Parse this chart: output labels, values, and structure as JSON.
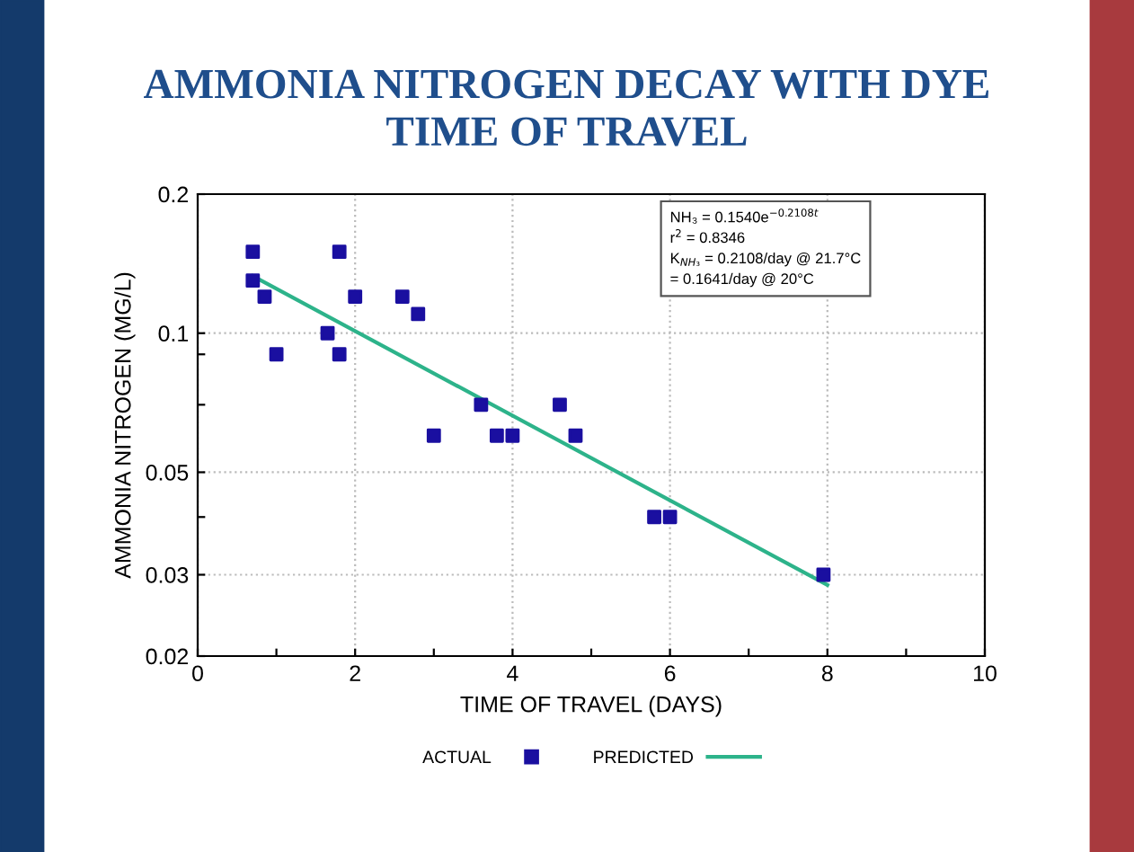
{
  "chart_data": {
    "type": "scatter",
    "title": "AMMONIA NITROGEN DECAY WITH DYE\nTIME OF TRAVEL",
    "xlabel": "TIME OF TRAVEL (DAYS)",
    "ylabel": "AMMONIA NITROGEN (MG/L)",
    "x": [
      0.7,
      0.7,
      0.85,
      1.0,
      1.65,
      1.8,
      1.8,
      2.0,
      2.6,
      2.8,
      3.0,
      3.6,
      3.8,
      4.0,
      4.6,
      4.8,
      5.8,
      6.0,
      7.95
    ],
    "series": [
      {
        "name": "ACTUAL",
        "color": "#1a0fa0",
        "marker": "square",
        "values": [
          0.15,
          0.13,
          0.12,
          0.09,
          0.1,
          0.15,
          0.09,
          0.12,
          0.12,
          0.11,
          0.06,
          0.07,
          0.06,
          0.06,
          0.07,
          0.06,
          0.04,
          0.04,
          0.03
        ]
      },
      {
        "name": "PREDICTED",
        "type": "line",
        "color": "#2db38a",
        "marker": "none",
        "line_style": "solid",
        "x": [
          0.7,
          8.0
        ],
        "values": [
          0.133,
          0.0285
        ]
      }
    ],
    "log": "y",
    "xlim": [
      0,
      10
    ],
    "xticks": [
      0,
      {
        "value": 1,
        "label": null
      },
      2,
      {
        "value": 3,
        "label": null
      },
      4,
      {
        "value": 5,
        "label": null
      },
      6,
      {
        "value": 7,
        "label": null
      },
      8,
      {
        "value": 9,
        "label": null
      },
      10
    ],
    "ylim": [
      0.02,
      0.2
    ],
    "yticks": [
      0.02,
      0.03,
      {
        "value": 0.04,
        "label": null
      },
      0.05,
      {
        "value": 0.07,
        "label": null
      },
      {
        "value": 0.09,
        "label": null
      },
      0.1,
      0.2
    ],
    "grid": true,
    "legend": "bottom",
    "annotations": [
      "NH₃ = 0.1540e$^{−0.2108t}$",
      "r$^{2}$ = 0.8346",
      "K$_{NH₃}$ = 0.2108/day @ 21.7°C",
      "= 0.1641/day @ 20°C"
    ]
  }
}
